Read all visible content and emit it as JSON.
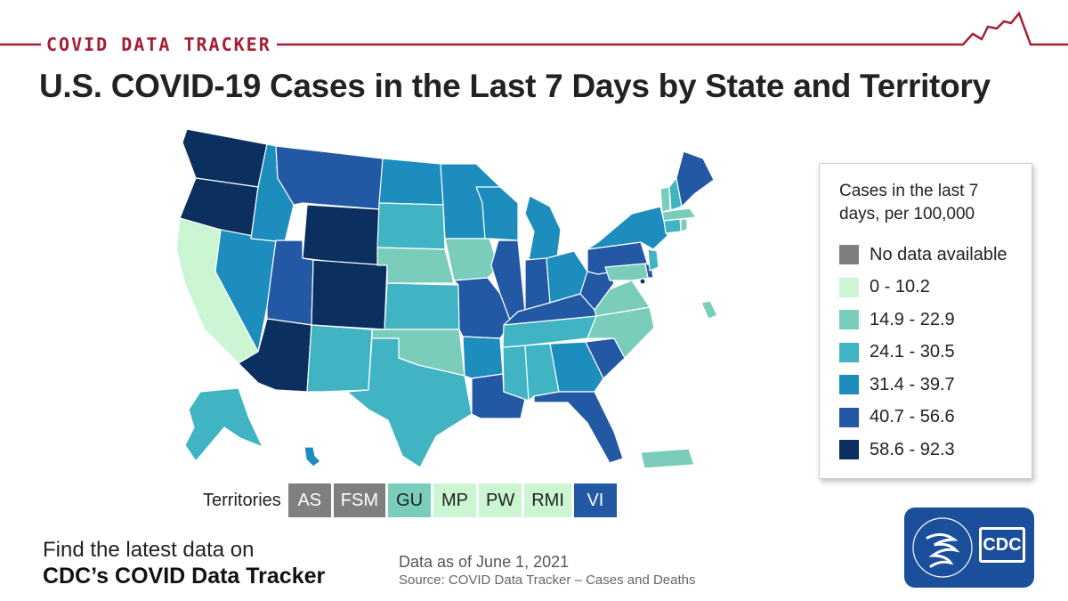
{
  "header": {
    "brand": "COVID DATA TRACKER",
    "title": "U.S. COVID-19 Cases in the Last 7 Days by State and Territory",
    "accent_color": "#a31f34"
  },
  "legend": {
    "title_line1": "Cases in the last 7",
    "title_line2": "days, per 100,000",
    "items": [
      {
        "label": "No data available",
        "color": "#7f7f7f"
      },
      {
        "label": "0 - 10.2",
        "color": "#ccf5d3"
      },
      {
        "label": "14.9 - 22.9",
        "color": "#7acdba"
      },
      {
        "label": "24.1 - 30.5",
        "color": "#41b4c4"
      },
      {
        "label": "31.4 - 39.7",
        "color": "#1d8dbe"
      },
      {
        "label": "40.7 - 56.6",
        "color": "#2358a5"
      },
      {
        "label": "58.6 - 92.3",
        "color": "#0b2f5e"
      }
    ]
  },
  "territories": {
    "label": "Territories",
    "items": [
      {
        "code": "AS",
        "color": "#7f7f7f"
      },
      {
        "code": "FSM",
        "color": "#7f7f7f"
      },
      {
        "code": "GU",
        "color": "#7acdba"
      },
      {
        "code": "MP",
        "color": "#ccf5d3"
      },
      {
        "code": "PW",
        "color": "#ccf5d3"
      },
      {
        "code": "RMI",
        "color": "#ccf5d3"
      },
      {
        "code": "VI",
        "color": "#2358a5"
      }
    ]
  },
  "footer": {
    "cta_line1": "Find the latest data on",
    "cta_line2": "CDC’s COVID Data Tracker",
    "as_of": "Data as of June 1, 2021",
    "source": "Source: COVID Data Tracker – Cases and Deaths",
    "logo_text": "CDC",
    "logo_color": "#1b4f9c"
  }
}
